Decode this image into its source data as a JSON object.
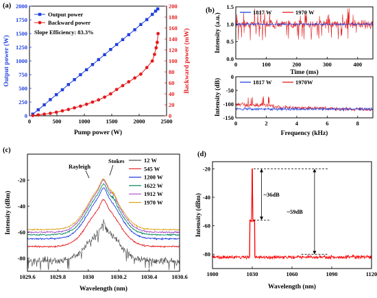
{
  "panels": {
    "a": {
      "label": "(a)"
    },
    "b": {
      "label": "(b)"
    },
    "c": {
      "label": "(c)"
    },
    "d": {
      "label": "(d)"
    }
  },
  "chart_data": [
    {
      "id": "a",
      "type": "line",
      "xlabel": "Pump power (W)",
      "ylabel": "Output power (W)",
      "ylabel_right": "Backward power (mW)",
      "xlim": [
        0,
        2500
      ],
      "ylim": [
        0,
        2000
      ],
      "ylim_right": [
        0,
        200
      ],
      "xticks": [
        0,
        500,
        1000,
        1500,
        2000,
        2500
      ],
      "yticks": [
        0,
        250,
        500,
        750,
        1000,
        1250,
        1500,
        1750,
        2000
      ],
      "yticks_right": [
        0,
        20,
        40,
        60,
        80,
        100,
        120,
        140,
        160,
        180,
        200
      ],
      "annotation": "Slope Efficiency: 83.3%",
      "legend_position": "top-left",
      "series": [
        {
          "name": "Output power",
          "axis": "left",
          "color": "#1f3fe0",
          "marker": "square",
          "x": [
            60,
            160,
            270,
            380,
            490,
            600,
            710,
            820,
            930,
            1040,
            1150,
            1260,
            1370,
            1480,
            1590,
            1700,
            1810,
            1920,
            2030,
            2140,
            2240,
            2300,
            2340
          ],
          "y": [
            30,
            110,
            200,
            295,
            385,
            475,
            570,
            660,
            750,
            840,
            935,
            1025,
            1115,
            1210,
            1300,
            1390,
            1480,
            1570,
            1665,
            1755,
            1850,
            1910,
            1950
          ]
        },
        {
          "name": "Backward power",
          "axis": "right",
          "color": "#e41a1c",
          "marker": "circle",
          "x": [
            60,
            160,
            270,
            380,
            490,
            600,
            710,
            820,
            930,
            1040,
            1150,
            1260,
            1370,
            1480,
            1590,
            1700,
            1810,
            1920,
            2030,
            2140,
            2240,
            2280,
            2310,
            2330,
            2345
          ],
          "y": [
            0.5,
            1.5,
            3,
            4.5,
            6.5,
            9,
            11.5,
            14.5,
            17.5,
            21,
            25,
            29,
            34,
            40,
            48,
            55,
            62,
            69,
            76,
            88,
            100,
            112,
            124,
            134,
            150
          ]
        }
      ]
    },
    {
      "id": "b-top",
      "type": "line",
      "xlabel": "Time (ms)",
      "ylabel": "Intensity (a.u.)",
      "xlim": [
        0,
        450
      ],
      "ylim": [
        0,
        1.5
      ],
      "xticks": [
        0,
        100,
        200,
        300,
        400
      ],
      "yticks": [
        0,
        0.5,
        1.0,
        1.5
      ],
      "ytick_labels": [
        "0.0",
        "0.5",
        "1.0",
        "1.5"
      ],
      "legend_position": "top",
      "series": [
        {
          "name": "1817 W",
          "color": "#1f3fe0",
          "mean": 1.0,
          "spread": 0.07
        },
        {
          "name": "1970 W",
          "color": "#e41a1c",
          "mean": 1.0,
          "spread": 0.3
        }
      ]
    },
    {
      "id": "b-bottom",
      "type": "line",
      "xlabel": "Frequency (kHz)",
      "ylabel": "Intensity (dB)",
      "xlim": [
        0,
        9
      ],
      "ylim": [
        -150,
        0
      ],
      "xticks": [
        0,
        2,
        4,
        6,
        8
      ],
      "yticks": [
        -150,
        -100,
        -50,
        0
      ],
      "legend_position": "top",
      "series": [
        {
          "name": "1817 W",
          "color": "#1f3fe0",
          "mean": -118,
          "spread": 10
        },
        {
          "name": "1970W",
          "color": "#e41a1c",
          "mean": -108,
          "spread": 12
        }
      ]
    },
    {
      "id": "c",
      "type": "line",
      "xlabel": "Wavelength (nm)",
      "ylabel": "Intensity (dBm)",
      "xlim": [
        1029.6,
        1030.6
      ],
      "ylim": [
        -90,
        0
      ],
      "xticks": [
        1029.6,
        1029.8,
        1030.0,
        1030.2,
        1030.4,
        1030.6
      ],
      "xtick_labels": [
        "1029.6",
        "1029.8",
        "1030",
        "1030.2",
        "1030.4",
        "1030.6"
      ],
      "yticks": [
        -80,
        -60,
        -40,
        -20
      ],
      "annotations": [
        "Rayleigh",
        "Stokes"
      ],
      "legend_position": "top-right",
      "series": [
        {
          "name": "12 W",
          "color": "#505050",
          "base": -82,
          "peak": -53
        },
        {
          "name": "545 W",
          "color": "#e41a1c",
          "base": -71,
          "peak": -35
        },
        {
          "name": "1200 W",
          "color": "#1f3fe0",
          "base": -65,
          "peak": -26
        },
        {
          "name": "1622 W",
          "color": "#0a8a5a",
          "base": -62,
          "peak": -23
        },
        {
          "name": "1912 W",
          "color": "#a64ac9",
          "base": -60,
          "peak": -20
        },
        {
          "name": "1970 W",
          "color": "#d9a21b",
          "base": -58,
          "peak": -19
        }
      ]
    },
    {
      "id": "d",
      "type": "line",
      "xlabel": "Wavelength (nm)",
      "ylabel": "Intensity (dBm)",
      "xlim": [
        1000,
        1120
      ],
      "ylim": [
        -90,
        -15
      ],
      "xticks": [
        1000,
        1030,
        1060,
        1090,
        1120
      ],
      "yticks": [
        -80,
        -60,
        -40,
        -20
      ],
      "annotations": [
        "~36dB",
        "~59dB"
      ],
      "series": [
        {
          "name": "",
          "color": "#ff0000",
          "peak_x": 1030,
          "peak_y": -20,
          "shoulder_y": -56,
          "floor_y": -82
        }
      ]
    }
  ]
}
